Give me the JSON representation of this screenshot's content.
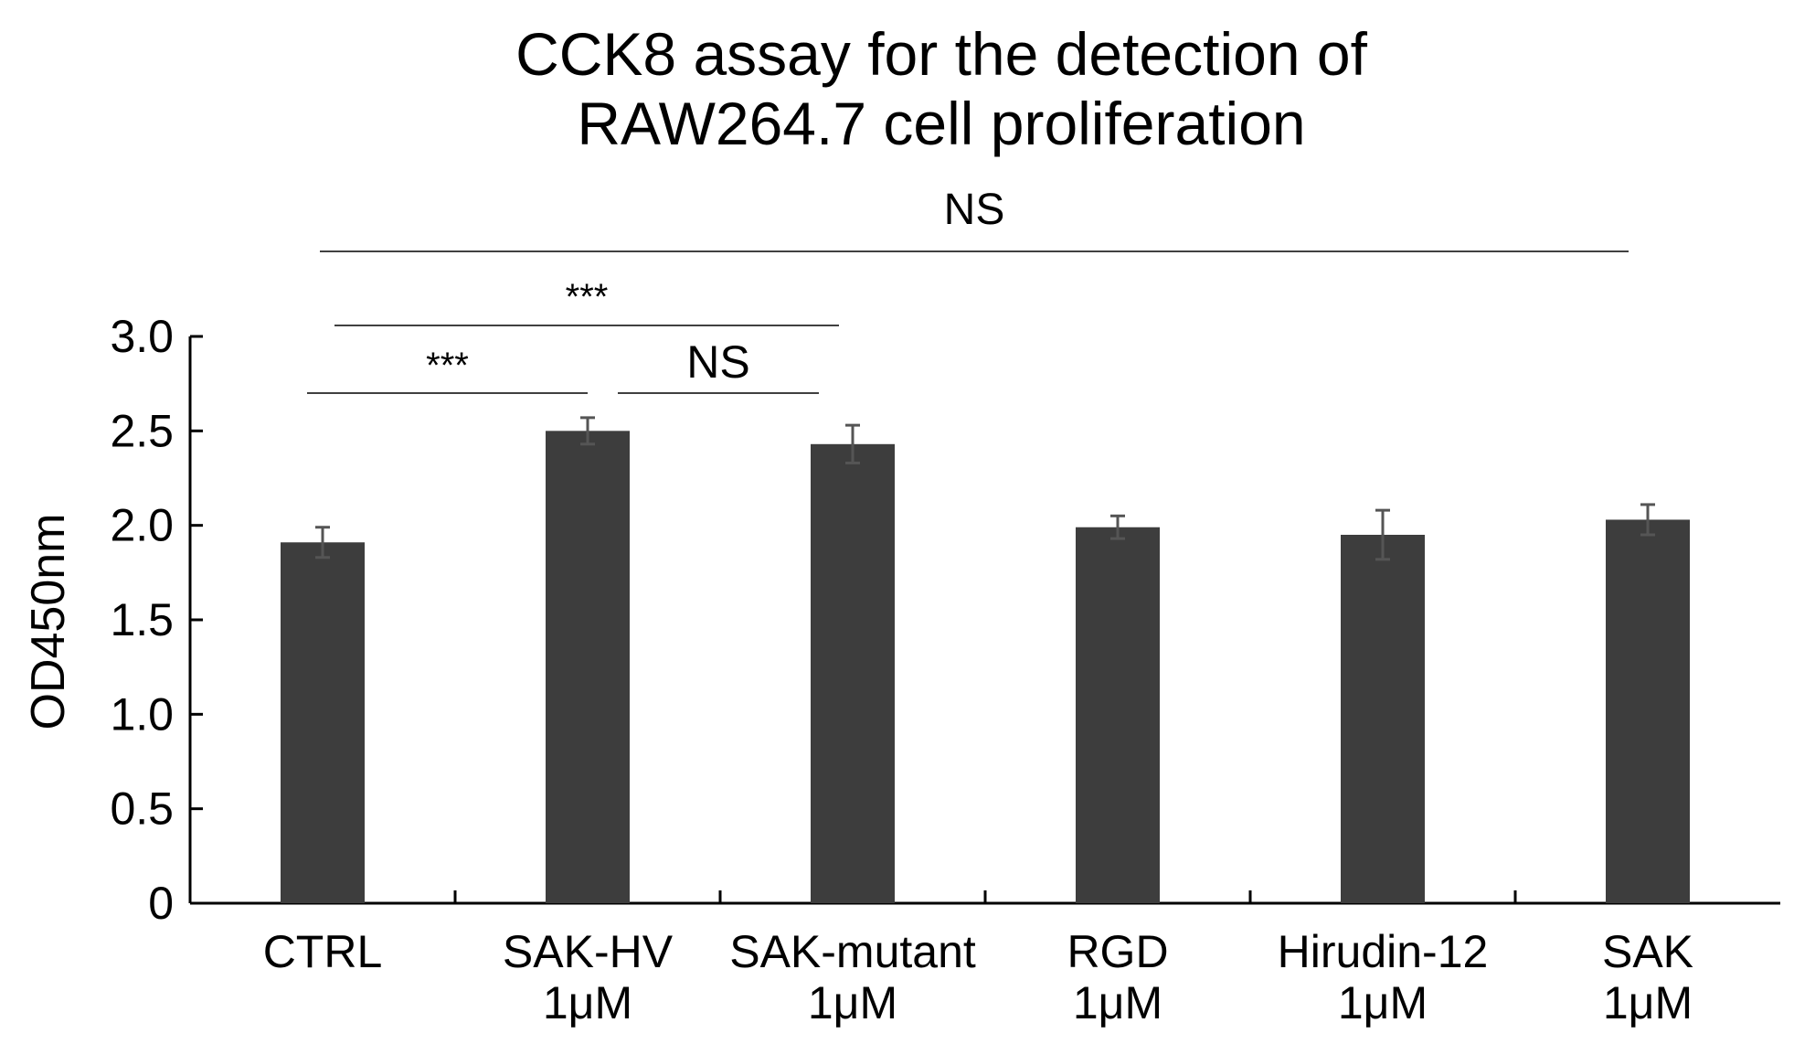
{
  "chart_data": {
    "type": "bar",
    "title": [
      "CCK8 assay for the detection of",
      "RAW264.7 cell proliferation"
    ],
    "xlabel": "",
    "ylabel": "OD450nm",
    "ylim": [
      0,
      3.0
    ],
    "yticks": [
      "0",
      "0.5",
      "1.0",
      "1.5",
      "2.0",
      "2.5",
      "3.0"
    ],
    "ytick_values": [
      0,
      0.5,
      1.0,
      1.5,
      2.0,
      2.5,
      3.0
    ],
    "grid": false,
    "bar_color": "#3d3d3d",
    "error_color": "#555555",
    "categories": [
      [
        "CTRL"
      ],
      [
        "SAK-HV",
        "1μM"
      ],
      [
        "SAK-mutant",
        "1μM"
      ],
      [
        "RGD",
        "1μM"
      ],
      [
        "Hirudin-12",
        "1μM"
      ],
      [
        "SAK",
        "1μM"
      ]
    ],
    "values": [
      1.91,
      2.5,
      2.43,
      1.99,
      1.95,
      2.03
    ],
    "errors": [
      0.08,
      0.07,
      0.1,
      0.06,
      0.13,
      0.08
    ],
    "significance": [
      {
        "label": "NS",
        "from": 0,
        "to": 5
      },
      {
        "label": "***",
        "from": 0,
        "to": 2
      },
      {
        "label": "***",
        "from": 0,
        "to": 1
      },
      {
        "label": "NS",
        "from": 1,
        "to": 2
      }
    ]
  }
}
